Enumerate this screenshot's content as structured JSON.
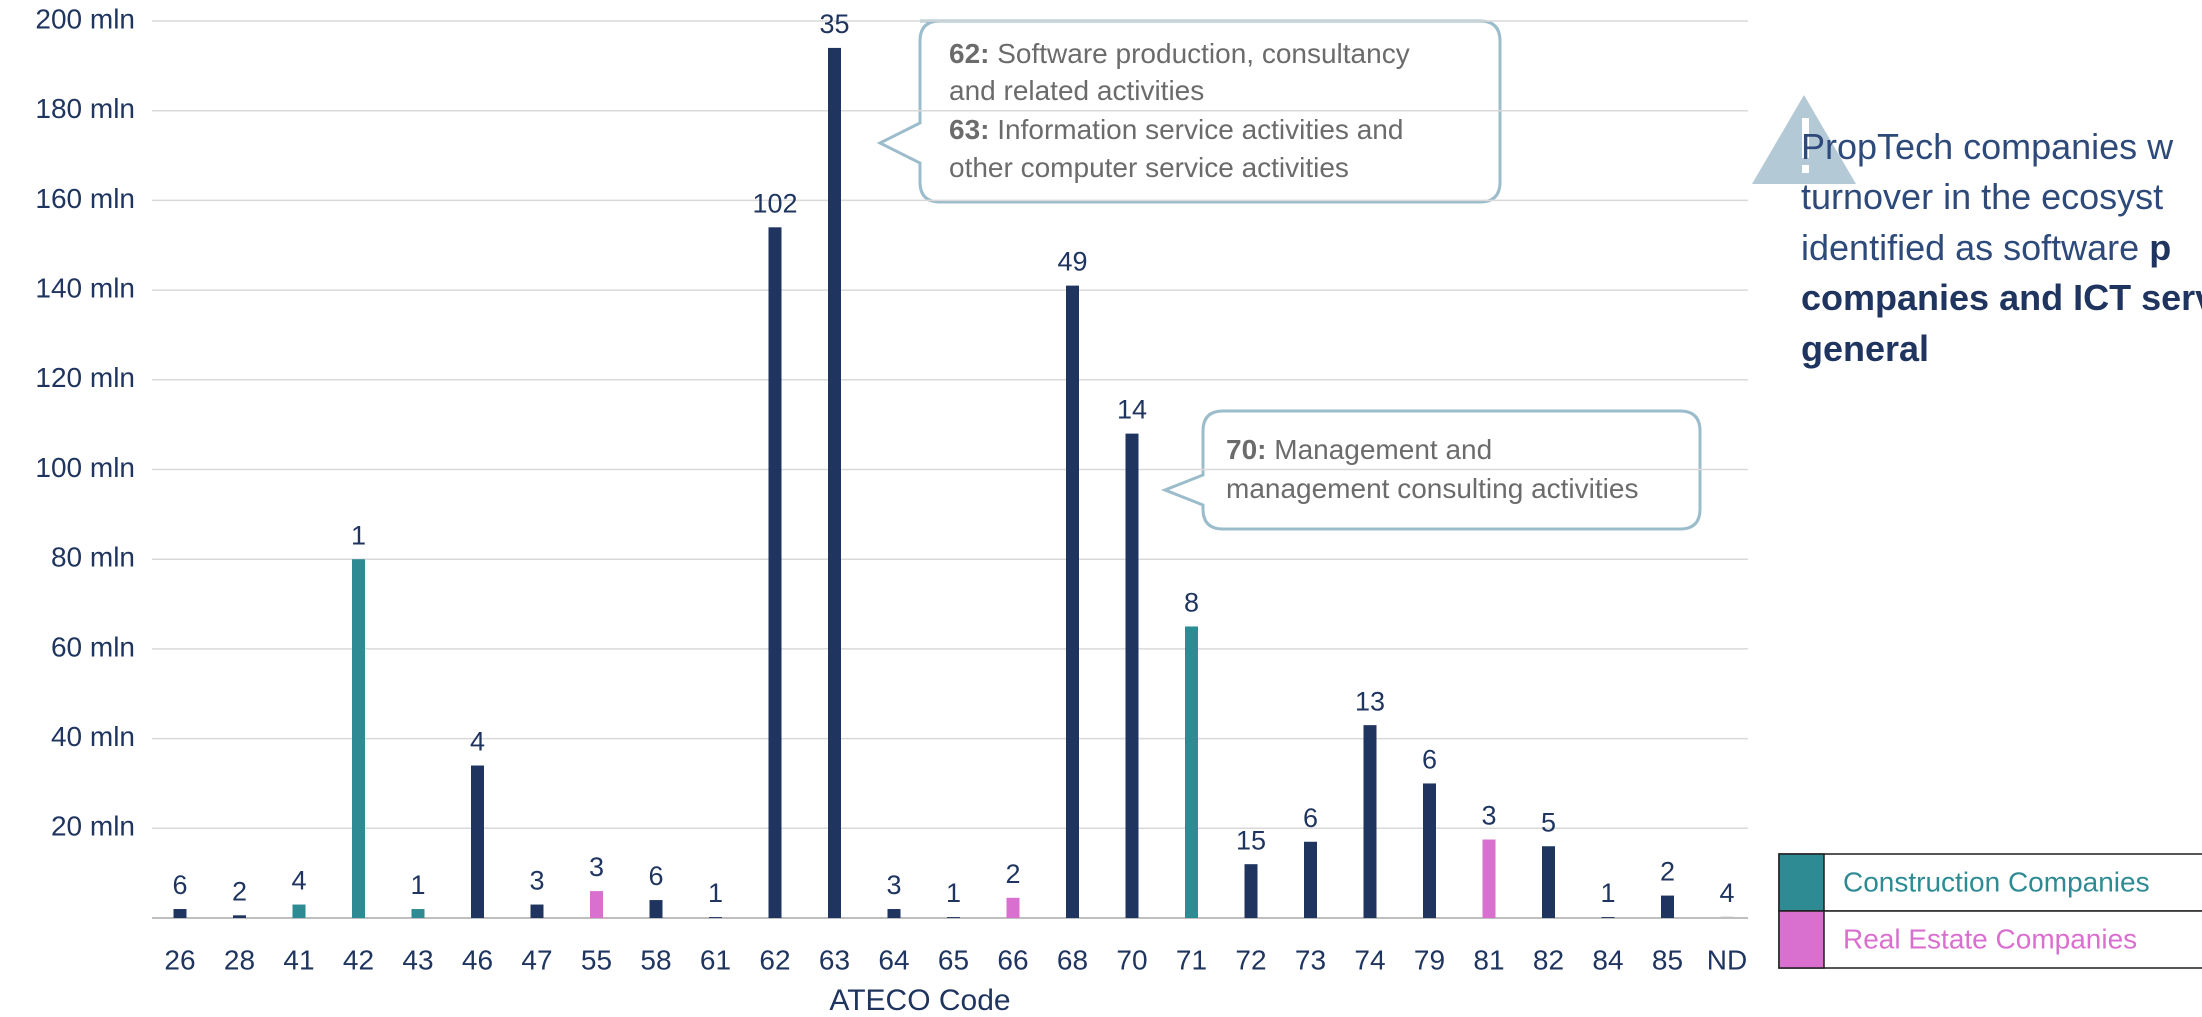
{
  "chart_data": {
    "type": "bar",
    "x_label": "ATECO Code",
    "categories": [
      "26",
      "28",
      "41",
      "42",
      "43",
      "46",
      "47",
      "55",
      "58",
      "61",
      "62",
      "63",
      "64",
      "65",
      "66",
      "68",
      "70",
      "71",
      "72",
      "73",
      "74",
      "79",
      "81",
      "82",
      "84",
      "85",
      "ND"
    ],
    "values": [
      2,
      0.6,
      3,
      80,
      2,
      34,
      3,
      6,
      4,
      0.2,
      154,
      194,
      2,
      0.2,
      4.5,
      141,
      108,
      65,
      12,
      17,
      43,
      30,
      17.5,
      16,
      0.2,
      5,
      0.3
    ],
    "counts": [
      6,
      2,
      4,
      1,
      1,
      4,
      3,
      3,
      6,
      1,
      102,
      35,
      3,
      1,
      2,
      49,
      14,
      8,
      15,
      6,
      13,
      6,
      3,
      5,
      1,
      2,
      4
    ],
    "bar_colors": [
      "#1f3560",
      "#1f3560",
      "#2e8b93",
      "#2e8b93",
      "#2e8b93",
      "#1f3560",
      "#1f3560",
      "#d96fcf",
      "#1f3560",
      "#1f3560",
      "#1f3560",
      "#1f3560",
      "#1f3560",
      "#1f3560",
      "#d96fcf",
      "#1f3560",
      "#1f3560",
      "#2e8b93",
      "#1f3560",
      "#1f3560",
      "#1f3560",
      "#1f3560",
      "#d96fcf",
      "#1f3560",
      "#1f3560",
      "#1f3560",
      "#bfbfbf"
    ],
    "ylim": [
      0,
      200
    ],
    "yticks": [
      {
        "value": 20,
        "label": "20 mln"
      },
      {
        "value": 40,
        "label": "40 mln"
      },
      {
        "value": 60,
        "label": "60 mln"
      },
      {
        "value": 80,
        "label": "80 mln"
      },
      {
        "value": 100,
        "label": "100 mln"
      },
      {
        "value": 120,
        "label": "120 mln"
      },
      {
        "value": 140,
        "label": "140 mln"
      },
      {
        "value": 160,
        "label": "160 mln"
      },
      {
        "value": 180,
        "label": "180 mln"
      },
      {
        "value": 200,
        "label": "200 mln"
      }
    ],
    "grid": true,
    "legend": [
      {
        "name": "Construction Companies",
        "color": "#2e8b93"
      },
      {
        "name": "Real Estate Companies",
        "color": "#d96fcf"
      }
    ],
    "callouts": [
      {
        "lines": [
          [
            {
              "text": "62:",
              "bold": true
            },
            {
              "text": " Software production, consultancy"
            }
          ],
          [
            {
              "text": "and related activities"
            }
          ],
          [
            {
              "text": "63:",
              "bold": true
            },
            {
              "text": " Information service activities and"
            }
          ],
          [
            {
              "text": "other computer service activities"
            }
          ]
        ]
      },
      {
        "lines": [
          [
            {
              "text": "70:",
              "bold": true
            },
            {
              "text": " Management and"
            }
          ],
          [
            {
              "text": "management consulting activities"
            }
          ]
        ]
      }
    ],
    "note": [
      [
        {
          "text": "PropTech companies w"
        }
      ],
      [
        {
          "text": "turnover in the ecosyst"
        }
      ],
      [
        {
          "text": "identified as software "
        },
        {
          "text": "p",
          "bold": true
        }
      ],
      [
        {
          "text": "companies and ICT serv",
          "bold": true
        }
      ],
      [
        {
          "text": "general",
          "bold": true
        }
      ]
    ]
  }
}
